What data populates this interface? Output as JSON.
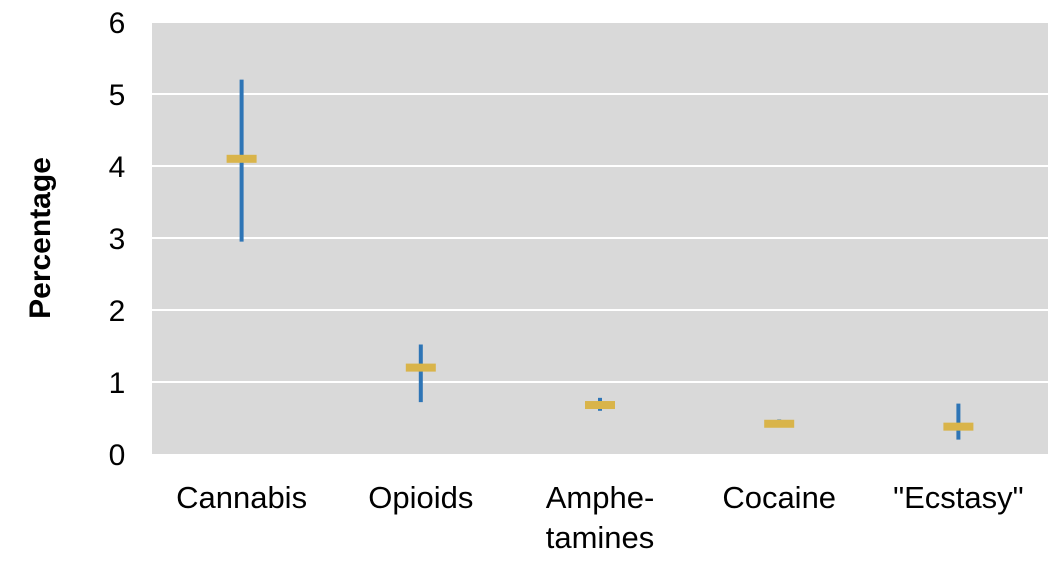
{
  "chart_data": {
    "type": "scatter",
    "title": "",
    "xlabel": "",
    "ylabel": "Percentage",
    "ylim": [
      0,
      6
    ],
    "yticks": [
      0,
      1,
      2,
      3,
      4,
      5,
      6
    ],
    "grid": true,
    "categories": [
      [
        "Cannabis"
      ],
      [
        "Opioids"
      ],
      [
        "Amphe-",
        "tamines"
      ],
      [
        "Cocaine"
      ],
      [
        "\"Ecstasy\""
      ]
    ],
    "series": [
      {
        "estimate": [
          4.1,
          1.2,
          0.68,
          0.42,
          0.38
        ],
        "lower": [
          2.95,
          0.72,
          0.6,
          0.38,
          0.2
        ],
        "upper": [
          5.2,
          1.52,
          0.78,
          0.48,
          0.7
        ]
      }
    ],
    "colors": {
      "plot_background": "#d9d9d9",
      "gridline": "#ffffff",
      "interval": "#2e75b6",
      "estimate": "#d9b44a"
    }
  }
}
